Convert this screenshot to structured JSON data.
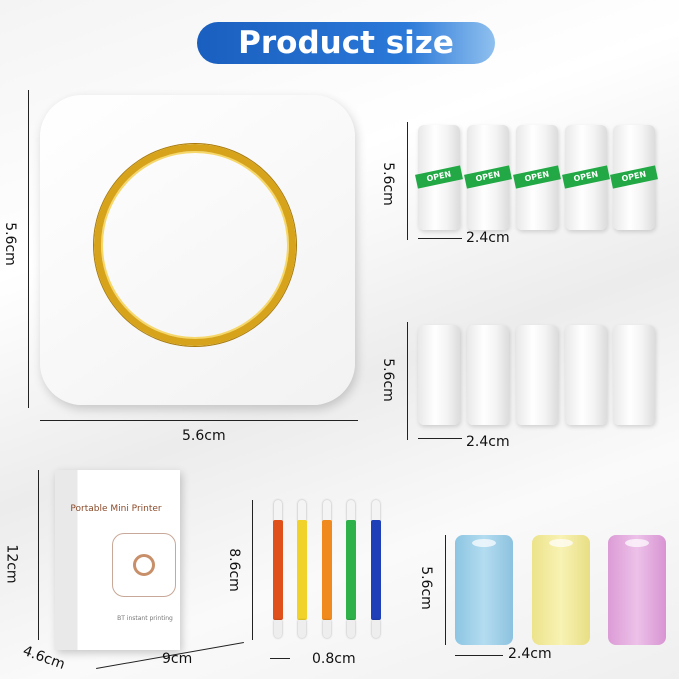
{
  "title": "Product size",
  "printer": {
    "height": "5.6cm",
    "width": "5.6cm"
  },
  "rolls_open": {
    "label": "OPEN",
    "height": "5.6cm",
    "width": "2.4cm",
    "count": 5
  },
  "rolls_plain": {
    "height": "5.6cm",
    "width": "2.4cm",
    "count": 5
  },
  "box": {
    "title": "Portable Mini Printer",
    "subtitle": "BT instant printing",
    "height": "12cm",
    "depth": "4.6cm",
    "width": "9cm"
  },
  "markers": {
    "length": "8.6cm",
    "diameter": "0.8cm",
    "colors": [
      "#e0501a",
      "#f1d22a",
      "#f08a1e",
      "#2fb14a",
      "#1f3fb8"
    ]
  },
  "color_rolls": {
    "height": "5.6cm",
    "width": "2.4cm",
    "colors": [
      "#9fd0ea",
      "#f3ec9a",
      "#e4a9e0"
    ]
  }
}
